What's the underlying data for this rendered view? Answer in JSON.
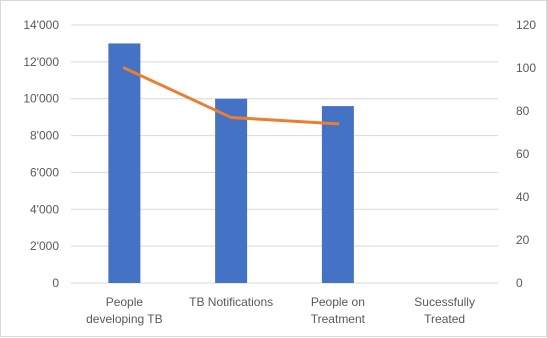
{
  "chart_data": {
    "type": "bar",
    "categories": [
      [
        "People",
        "developing TB"
      ],
      [
        "TB Notifications"
      ],
      [
        "People on",
        "Treatment"
      ],
      [
        "Sucessfully",
        "Treated"
      ]
    ],
    "series": [
      {
        "type": "bar",
        "axis": "left",
        "color": "#4472c4",
        "values": [
          13000,
          10000,
          9600,
          null
        ]
      },
      {
        "type": "line",
        "axis": "right",
        "color": "#ed7d31",
        "values": [
          100,
          77,
          74,
          null
        ]
      }
    ],
    "y_left": {
      "min": 0,
      "max": 14000,
      "step": 2000,
      "tick_labels": [
        "0",
        "2'000",
        "4'000",
        "6'000",
        "8'000",
        "10'000",
        "12'000",
        "14'000"
      ]
    },
    "y_right": {
      "min": 0,
      "max": 120,
      "step": 20,
      "tick_labels": [
        "0",
        "20",
        "40",
        "60",
        "80",
        "100",
        "120"
      ]
    },
    "grid": true,
    "gridline_color": "#d9d9d9"
  }
}
